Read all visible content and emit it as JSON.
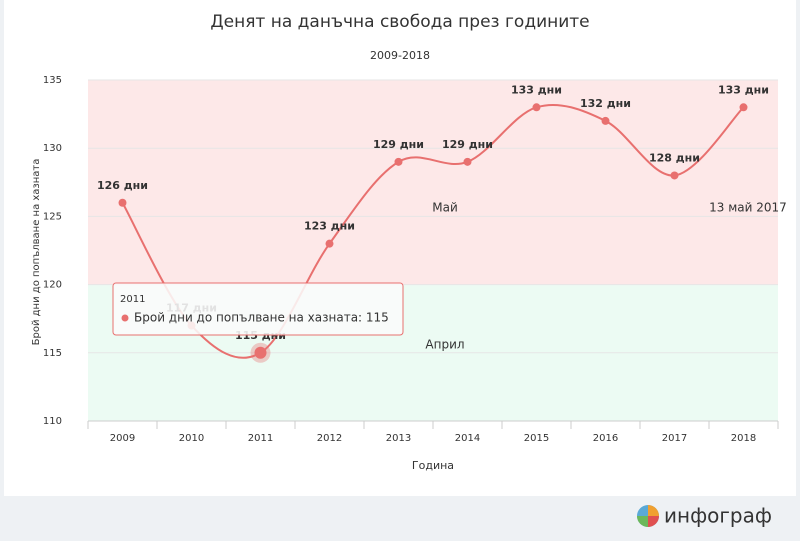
{
  "chart_data": {
    "type": "line",
    "title": "Денят на данъчна свобода през годините",
    "subtitle": "2009-2018",
    "x_label": "Година",
    "y_label": "Брой дни до попълване на хазната",
    "categories": [
      "2009",
      "2010",
      "2011",
      "2012",
      "2013",
      "2014",
      "2015",
      "2016",
      "2017",
      "2018"
    ],
    "series": [
      {
        "name": "Брой дни до попълване на хазната",
        "color": "#e8706f",
        "values": [
          126,
          117,
          115,
          123,
          129,
          129,
          133,
          132,
          128,
          133
        ],
        "value_labels": [
          "126 дни",
          "117 дни",
          "115 дни",
          "123 дни",
          "129 дни",
          "129 дни",
          "133 дни",
          "132 дни",
          "128 дни",
          "133 дни"
        ]
      }
    ],
    "ylim": [
      110,
      135
    ],
    "yticks": [
      110,
      115,
      120,
      125,
      130,
      135
    ],
    "bands": [
      {
        "from": 120,
        "to": 135,
        "color": "#fde8e8"
      },
      {
        "from": 110,
        "to": 120,
        "color": "#ecfbf3"
      }
    ],
    "annotations": [
      "Май",
      "Април",
      "13 май 2017"
    ],
    "tooltip": {
      "title": "2011",
      "text": "Брой дни до попълване на хазната: 115"
    },
    "logo": "инфограф"
  }
}
